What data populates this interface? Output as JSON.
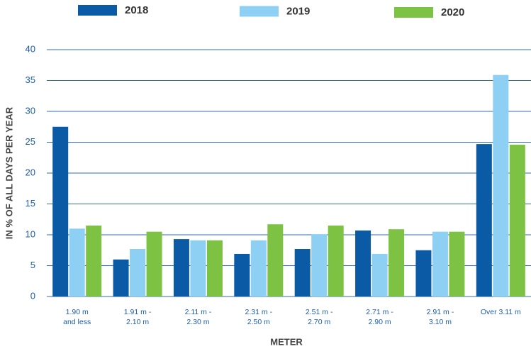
{
  "chart_data": {
    "type": "bar",
    "x_label": "METER",
    "y_label": "IN % OF ALL DAYS PER YEAR",
    "categories": [
      "1.90 m\nand less",
      "1.91 m -\n2.10 m",
      "2.11 m -\n2.30 m",
      "2.31 m -\n2.50 m",
      "2.51 m -\n2.70 m",
      "2.71 m -\n2.90 m",
      "2.91 m -\n3.10 m",
      "Over 3.11 m"
    ],
    "series": [
      {
        "name": "2018",
        "color": "#0b5aa6",
        "values": [
          27.5,
          6,
          9.3,
          6.9,
          7.7,
          10.7,
          7.5,
          24.7
        ]
      },
      {
        "name": "2019",
        "color": "#8ed0f4",
        "values": [
          11,
          7.7,
          9.1,
          9.1,
          10.1,
          6.9,
          10.5,
          35.9
        ]
      },
      {
        "name": "2020",
        "color": "#7dc242",
        "values": [
          11.5,
          10.5,
          9.1,
          11.7,
          11.5,
          10.9,
          10.5,
          24.6
        ]
      }
    ],
    "ylim": [
      0,
      40
    ],
    "yticks": [
      0,
      5,
      10,
      15,
      20,
      25,
      30,
      35,
      40
    ],
    "grid": true,
    "legend": "top"
  }
}
